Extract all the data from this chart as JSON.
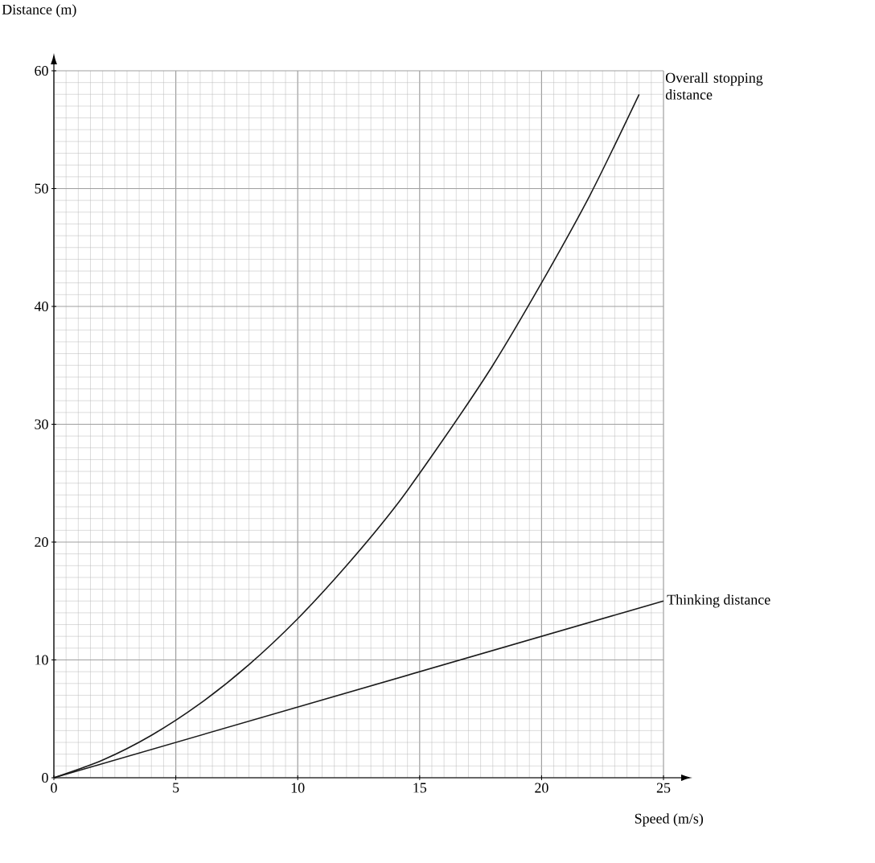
{
  "chart_data": {
    "type": "line",
    "xlabel": "Speed (m/s)",
    "ylabel": "Distance (m)",
    "xlim": [
      0,
      25
    ],
    "ylim": [
      0,
      60
    ],
    "xticks": [
      0,
      5,
      10,
      15,
      20,
      25
    ],
    "yticks": [
      0,
      10,
      20,
      30,
      40,
      50,
      60
    ],
    "grid": true,
    "marker": "none",
    "line_style": "solid",
    "series": [
      {
        "name": "Overall stopping distance",
        "color": "#1a1a1a",
        "x": [
          0,
          2,
          4,
          6,
          8,
          10,
          12,
          14,
          16,
          18,
          20,
          22,
          24
        ],
        "values": [
          0,
          1.5,
          3.6,
          6.3,
          9.6,
          13.5,
          18,
          23,
          28.8,
          35,
          42,
          49.5,
          58
        ]
      },
      {
        "name": "Thinking distance",
        "color": "#1a1a1a",
        "x": [
          0,
          25
        ],
        "values": [
          0,
          15
        ]
      }
    ]
  }
}
